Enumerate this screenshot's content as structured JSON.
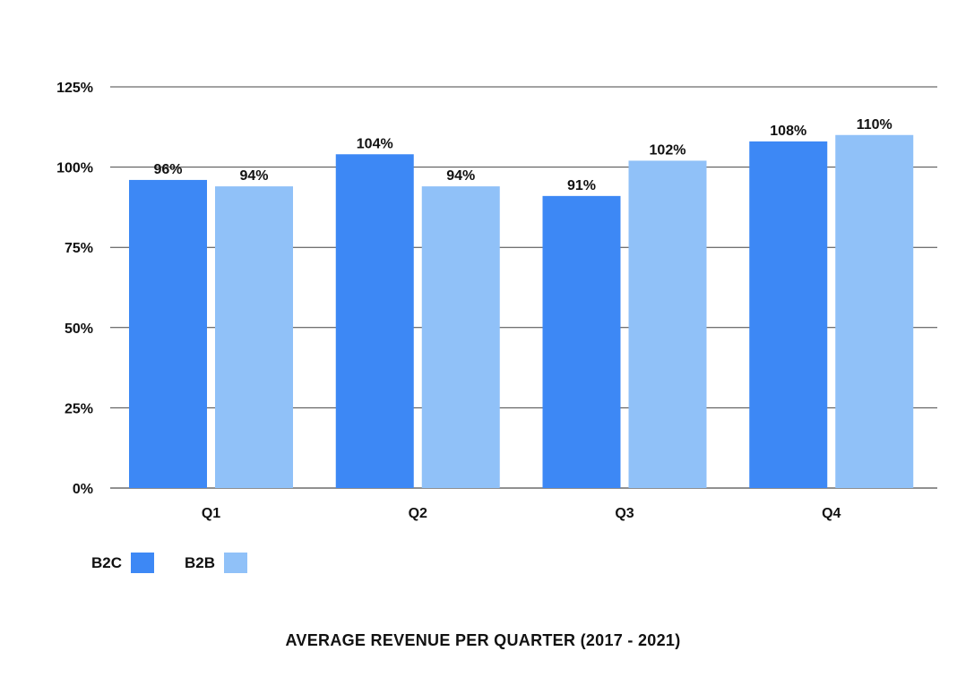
{
  "chart_data": {
    "type": "bar",
    "title": "AVERAGE REVENUE PER QUARTER (2017 - 2021)",
    "xlabel": "",
    "ylabel": "",
    "categories": [
      "Q1",
      "Q2",
      "Q3",
      "Q4"
    ],
    "series": [
      {
        "name": "B2C",
        "color": "#3d88f5",
        "values": [
          96,
          104,
          91,
          108
        ],
        "labels": [
          "96%",
          "104%",
          "91%",
          "108%"
        ]
      },
      {
        "name": "B2B",
        "color": "#90c1f8",
        "values": [
          94,
          94,
          102,
          110
        ],
        "labels": [
          "94%",
          "94%",
          "102%",
          "110%"
        ]
      }
    ],
    "ylim": [
      0,
      125
    ],
    "yticks": [
      0,
      25,
      50,
      75,
      100,
      125
    ],
    "ytick_labels": [
      "0%",
      "25%",
      "50%",
      "75%",
      "100%",
      "125%"
    ],
    "grid": true,
    "legend_position": "bottom-left"
  }
}
